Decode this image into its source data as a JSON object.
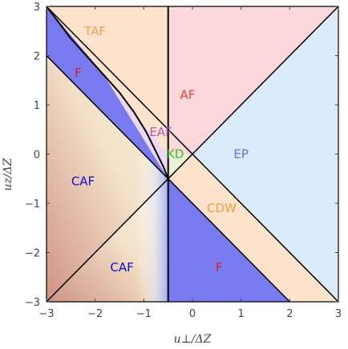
{
  "chart_data": {
    "type": "phase-diagram",
    "xlabel": "u⊥/ΔZ",
    "ylabel": "uz/ΔZ",
    "xlim": [
      -3,
      3
    ],
    "ylim": [
      -3,
      3
    ],
    "x_ticks": [
      -3,
      -2,
      -1,
      0,
      1,
      2,
      3
    ],
    "y_ticks": [
      -3,
      -2,
      -1,
      0,
      1,
      2,
      3
    ],
    "x_tick_labels": [
      "−3",
      "−2",
      "−1",
      "0",
      "1",
      "2",
      "3"
    ],
    "y_tick_labels": [
      "−3",
      "−2",
      "−1",
      "0",
      "1",
      "2",
      "3"
    ],
    "regions": [
      {
        "name": "TAF",
        "color": "#f6a05a",
        "fill": "#fde3cc",
        "label_at": [
          -2.0,
          2.5
        ],
        "polygon": [
          [
            -3,
            3
          ],
          [
            -0.5,
            3
          ],
          [
            -0.5,
            0
          ],
          [
            -3,
            3
          ]
        ]
      },
      {
        "name": "AF",
        "color": "#e3453d",
        "fill": "#fcd8da",
        "label_at": [
          -0.1,
          1.2
        ],
        "polygon": [
          [
            -0.5,
            3
          ],
          [
            3,
            3
          ],
          [
            0,
            0
          ],
          [
            -0.5,
            0
          ]
        ]
      },
      {
        "name": "EP",
        "color": "#6b6bdc",
        "fill": "#dcebfb",
        "label_at": [
          1.0,
          0.0
        ],
        "polygon": [
          [
            3,
            3
          ],
          [
            3,
            -3
          ],
          [
            0,
            0
          ]
        ]
      },
      {
        "name": "KD",
        "color": "#39c424",
        "fill": "#e6f3d6",
        "label_at": [
          -0.35,
          0.0
        ],
        "polygon": [
          [
            -0.5,
            -0.5
          ],
          [
            -0.5,
            0
          ],
          [
            0,
            0
          ]
        ]
      },
      {
        "name": "EAF",
        "color": "#b155c0",
        "fill": "#ecd9f1",
        "label_at": [
          -0.65,
          0.45
        ],
        "polygon": [
          [
            -3,
            3
          ],
          [
            -0.5,
            0
          ],
          [
            -0.5,
            -0.5
          ],
          [
            -1.85,
            1.65
          ]
        ]
      },
      {
        "name": "CDW",
        "color": "#f0a042",
        "fill": "#fde3cc",
        "label_at": [
          0.6,
          -1.1
        ],
        "polygon": [
          [
            -0.5,
            -0.5
          ],
          [
            0,
            0
          ],
          [
            3,
            -3
          ],
          [
            2,
            -3
          ]
        ]
      },
      {
        "name": "F",
        "color": "#e01a1a",
        "fill": "#7a7af0",
        "label_at": [
          -2.35,
          1.65
        ],
        "polygon": [
          [
            -3,
            3
          ],
          [
            -1.85,
            1.65
          ],
          [
            -0.5,
            -0.5
          ],
          [
            -3,
            2
          ]
        ]
      },
      {
        "name": "F",
        "color": "#e01a1a",
        "fill": "#7a7af0",
        "label_at": [
          0.55,
          -2.3
        ],
        "polygon": [
          [
            -0.5,
            -0.5
          ],
          [
            2,
            -3
          ],
          [
            -0.5,
            -3
          ]
        ]
      },
      {
        "name": "CAF",
        "color": "#1010c8",
        "fill": "gradient",
        "label_at": [
          -2.25,
          -0.55
        ],
        "polygon": [
          [
            -3,
            2
          ],
          [
            -0.5,
            -0.5
          ],
          [
            -3,
            -3
          ]
        ]
      },
      {
        "name": "CAF",
        "color": "#1010c8",
        "fill": "gradient",
        "label_at": [
          -1.45,
          -2.3
        ],
        "polygon": [
          [
            -3,
            -3
          ],
          [
            -0.5,
            -0.5
          ],
          [
            -0.5,
            -3
          ]
        ]
      }
    ],
    "boundaries": [
      {
        "points": [
          [
            -3,
            3
          ],
          [
            3,
            3
          ],
          [
            3,
            -3
          ],
          [
            -3,
            -3
          ],
          [
            -3,
            3
          ]
        ],
        "width": 1.2
      },
      {
        "points": [
          [
            -0.5,
            3
          ],
          [
            -0.5,
            -3
          ]
        ],
        "width": 2
      },
      {
        "points": [
          [
            -3,
            3
          ],
          [
            3,
            -3
          ]
        ],
        "width": 1.5
      },
      {
        "points": [
          [
            -3,
            2
          ],
          [
            2,
            -3
          ]
        ],
        "width": 1.5
      },
      {
        "points": [
          [
            -3,
            -3
          ],
          [
            -0.5,
            -0.5
          ],
          [
            0,
            0
          ],
          [
            3,
            3
          ]
        ],
        "width": 1.5
      },
      {
        "points": [
          [
            -3,
            3
          ],
          [
            -2.5,
            2.35
          ],
          [
            -2,
            1.8
          ],
          [
            -1.5,
            1.25
          ],
          [
            -1.2,
            0.85
          ],
          [
            -0.95,
            0.45
          ],
          [
            -0.75,
            0.05
          ],
          [
            -0.6,
            -0.25
          ],
          [
            -0.5,
            -0.5
          ]
        ],
        "width": 2
      }
    ],
    "colors": {
      "caf_dark": "#d29a8c",
      "caf_light": "#fbf3e0",
      "caf_blue": "#ccdcf8",
      "axis": "#444444"
    }
  }
}
